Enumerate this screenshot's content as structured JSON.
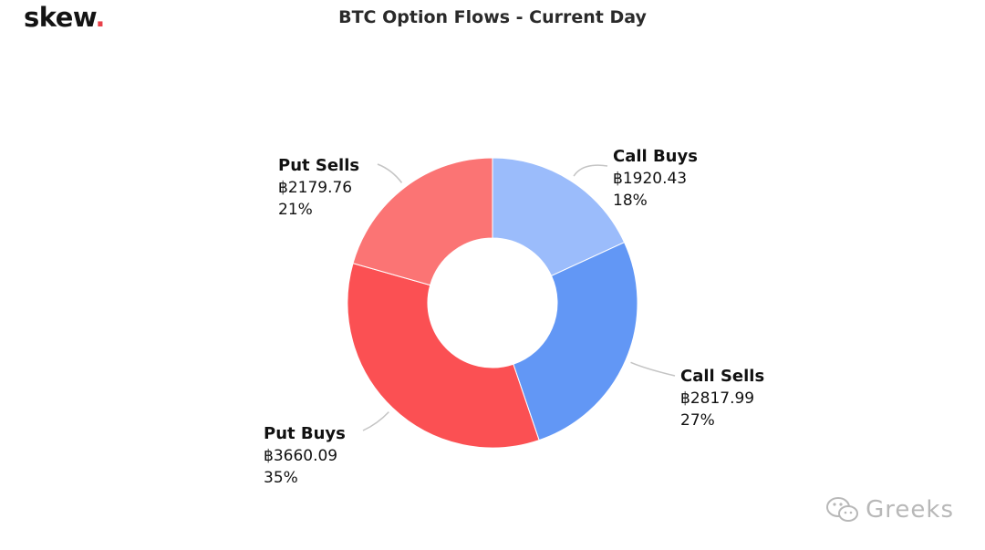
{
  "brand": {
    "logo_text": "skew",
    "logo_dot": "."
  },
  "chart_data": {
    "type": "pie",
    "variant": "donut",
    "title": "BTC Option Flows - Current Day",
    "currency_symbol": "฿",
    "slices": [
      {
        "name": "Call Buys",
        "value": 1920.43,
        "value_label": "฿1920.43",
        "percent_label": "18%",
        "color": "#9bbcfb"
      },
      {
        "name": "Call Sells",
        "value": 2817.99,
        "value_label": "฿2817.99",
        "percent_label": "27%",
        "color": "#6297f5"
      },
      {
        "name": "Put Buys",
        "value": 3660.09,
        "value_label": "฿3660.09",
        "percent_label": "35%",
        "color": "#fb5053"
      },
      {
        "name": "Put Sells",
        "value": 2179.76,
        "value_label": "฿2179.76",
        "percent_label": "21%",
        "color": "#fb7474"
      }
    ],
    "start_angle": "12 o'clock",
    "direction": "clockwise"
  },
  "watermark": {
    "text": "Greeks",
    "icon": "wechat-icon"
  }
}
